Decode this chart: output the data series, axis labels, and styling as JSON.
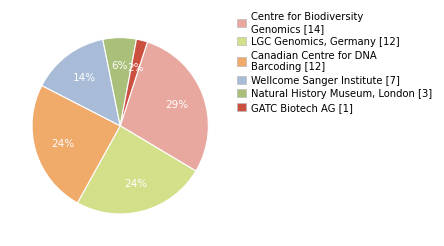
{
  "labels": [
    "Centre for Biodiversity\nGenomics [14]",
    "LGC Genomics, Germany [12]",
    "Canadian Centre for DNA\nBarcoding [12]",
    "Wellcome Sanger Institute [7]",
    "Natural History Museum, London [3]",
    "GATC Biotech AG [1]"
  ],
  "values": [
    14,
    12,
    12,
    7,
    3,
    1
  ],
  "colors": [
    "#e8a8a0",
    "#d4df8a",
    "#f0aa6a",
    "#a8bcd8",
    "#aabf7a",
    "#cc5040"
  ],
  "startangle": 72,
  "counterclock": false,
  "legend_fontsize": 7.2,
  "autopct_fontsize": 7.5,
  "background_color": "#ffffff"
}
